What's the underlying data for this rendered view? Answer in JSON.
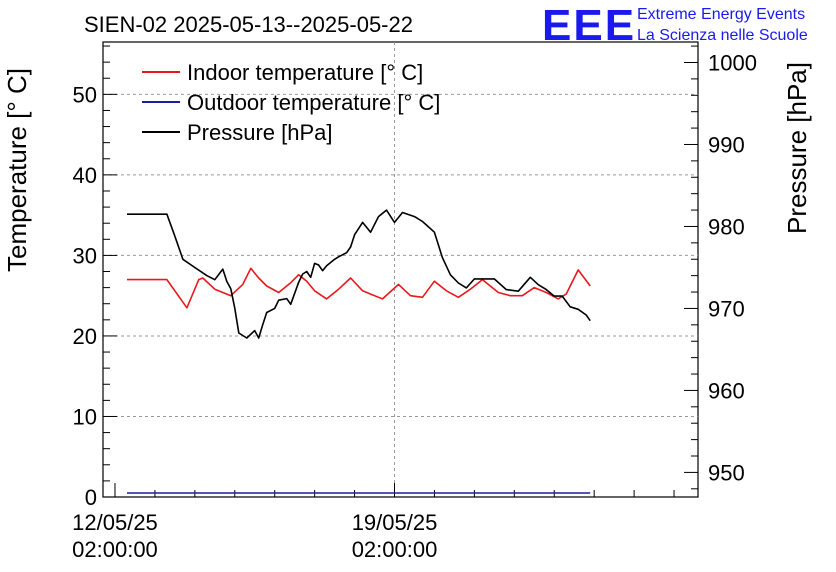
{
  "logo": {
    "mark": "EEE",
    "line1": "Extreme Energy Events",
    "line2": "La Scienza nelle Scuole"
  },
  "colors": {
    "indoor": "#e8191c",
    "outdoor": "#1c1ca8",
    "pressure": "#000000",
    "grid": "#999999",
    "logo": "#1a1aee"
  },
  "chart_data": {
    "type": "line",
    "title": "SIEN-02 2025-05-13--2025-05-22",
    "x_unit": "days since 12/05/25 02:00:00",
    "xlim": [
      -0.3,
      14.6
    ],
    "x_ticks": [
      {
        "x": 0,
        "label_date": "12/05/25",
        "label_time": "02:00:00"
      },
      {
        "x": 7,
        "label_date": "19/05/25",
        "label_time": "02:00:00"
      }
    ],
    "ylabel_left": "Temperature [° C]",
    "ylim_left": [
      0,
      56.5
    ],
    "yticks_left": [
      0,
      10,
      20,
      30,
      40,
      50
    ],
    "ylabel_right": "Pressure [hPa]",
    "ylim_right": [
      947,
      1002.5
    ],
    "yticks_right": [
      950,
      960,
      970,
      980,
      990,
      1000
    ],
    "grid": true,
    "legend_position": "top-left",
    "series": [
      {
        "name": "Indoor temperature [° C]",
        "axis": "left",
        "color": "#e8191c",
        "x": [
          0.3,
          1.3,
          1.8,
          2.1,
          2.2,
          2.5,
          2.9,
          3.2,
          3.4,
          3.6,
          3.8,
          4.1,
          4.4,
          4.6,
          4.8,
          5.0,
          5.3,
          5.6,
          5.9,
          6.2,
          6.4,
          6.7,
          7.1,
          7.4,
          7.7,
          8.0,
          8.3,
          8.6,
          8.9,
          9.2,
          9.6,
          9.9,
          10.2,
          10.5,
          10.8,
          11.1,
          11.3,
          11.6,
          11.9
        ],
        "y": [
          27,
          27,
          23.5,
          27,
          27.2,
          25.8,
          25,
          26.4,
          28.4,
          27.2,
          26.2,
          25.4,
          26.6,
          27.6,
          26.8,
          25.6,
          24.6,
          25.8,
          27.2,
          25.6,
          25.2,
          24.6,
          26.4,
          25,
          24.8,
          26.8,
          25.6,
          24.8,
          25.8,
          27,
          25.4,
          25,
          25,
          26,
          25.4,
          24.6,
          25.2,
          28.2,
          26.2
        ]
      },
      {
        "name": "Outdoor temperature [° C]",
        "axis": "left",
        "color": "#1c1ca8",
        "x": [
          0.3,
          11.9
        ],
        "y": [
          0.5,
          0.5
        ]
      },
      {
        "name": "Pressure [hPa]",
        "axis": "right",
        "color": "#000000",
        "x": [
          0.3,
          1.0,
          1.3,
          1.5,
          1.7,
          2.0,
          2.3,
          2.5,
          2.7,
          2.8,
          2.9,
          3.0,
          3.1,
          3.3,
          3.5,
          3.6,
          3.7,
          3.8,
          4.0,
          4.1,
          4.3,
          4.4,
          4.6,
          4.7,
          4.8,
          4.9,
          5.0,
          5.1,
          5.2,
          5.3,
          5.5,
          5.6,
          5.8,
          5.9,
          6.0,
          6.2,
          6.4,
          6.6,
          6.8,
          7.0,
          7.2,
          7.5,
          7.7,
          8.0,
          8.2,
          8.4,
          8.6,
          8.8,
          9.0,
          9.2,
          9.5,
          9.8,
          10.1,
          10.4,
          10.6,
          10.8,
          11.0,
          11.2,
          11.4,
          11.6,
          11.8,
          11.9
        ],
        "y": [
          981.5,
          981.5,
          981.5,
          978.8,
          976,
          975,
          974,
          973.5,
          974.8,
          973.3,
          972.4,
          970,
          967,
          966.4,
          967.3,
          966.4,
          968,
          969.5,
          970,
          971,
          971.2,
          970.5,
          973.2,
          974.2,
          974.5,
          973.8,
          975.5,
          975.3,
          974.6,
          975.2,
          976,
          976.3,
          976.8,
          977.5,
          979,
          980.5,
          979.3,
          981.2,
          982,
          980.5,
          981.7,
          981.2,
          980.6,
          979.3,
          976.2,
          974.1,
          973.1,
          972.5,
          973.6,
          973.6,
          973.6,
          972.3,
          972.1,
          973.8,
          972.9,
          972.3,
          971.5,
          971.5,
          970.2,
          969.9,
          969.2,
          968.5
        ]
      }
    ]
  }
}
